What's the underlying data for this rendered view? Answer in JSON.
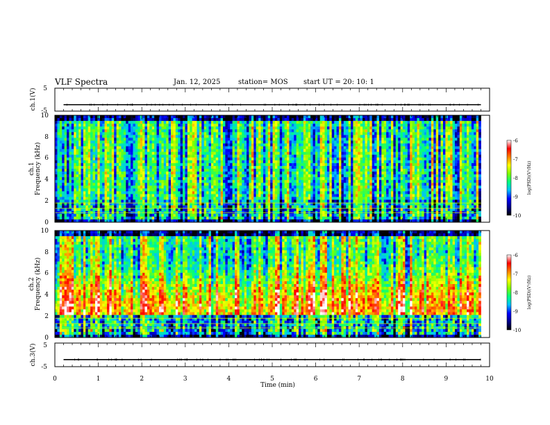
{
  "header": {
    "title": "VLF Spectra",
    "date": "Jan. 12, 2025",
    "station": "station= MOS",
    "start": "start  UT  =   20: 10: 1"
  },
  "chart_data": [
    {
      "type": "line",
      "panel": "ch1-waveform",
      "ylabel": "ch.1(V)",
      "ylim": [
        -5,
        5
      ],
      "yticks": [
        "5",
        "-5"
      ],
      "xlim": [
        0,
        10
      ],
      "series": [
        {
          "x": [
            0.2,
            9.8
          ],
          "values": [
            -2.2,
            -2.2
          ]
        }
      ]
    },
    {
      "type": "heatmap",
      "panel": "ch1-spectrogram",
      "ylabel": "ch.1",
      "ylabel2": "Frequency (kHz)",
      "ylim": [
        0,
        10
      ],
      "yticks": [
        "0",
        "2",
        "4",
        "6",
        "8",
        "10"
      ],
      "xlim": [
        0,
        9.8
      ],
      "colorbar": {
        "label": "log(PSD)(V²/Hz)",
        "range": [
          -10,
          -6
        ],
        "ticks": [
          "-6",
          "-7",
          "-8",
          "-9",
          "-10"
        ]
      }
    },
    {
      "type": "heatmap",
      "panel": "ch2-spectrogram",
      "ylabel": "ch.2",
      "ylabel2": "Frequency (kHz)",
      "ylim": [
        0,
        10
      ],
      "yticks": [
        "0",
        "2",
        "4",
        "6",
        "8",
        "10"
      ],
      "xlim": [
        0,
        9.8
      ],
      "colorbar": {
        "label": "log(PSD)(V²/Hz)",
        "range": [
          -10,
          -6
        ],
        "ticks": [
          "-6",
          "-7",
          "-8",
          "-9",
          "-10"
        ]
      }
    },
    {
      "type": "line",
      "panel": "ch3-waveform",
      "ylabel": "ch.3(V)",
      "ylim": [
        -5,
        5
      ],
      "yticks": [
        "5",
        "-5"
      ],
      "xlim": [
        0,
        10
      ],
      "series": [
        {
          "x": [
            0.2,
            9.8
          ],
          "values": [
            -2.0,
            -2.0
          ]
        }
      ]
    }
  ],
  "x_axis": {
    "label": "Time  (min)",
    "ticks": [
      "0",
      "1",
      "2",
      "3",
      "4",
      "5",
      "6",
      "7",
      "8",
      "9",
      "10"
    ]
  },
  "colors": {
    "scale": [
      "#000000",
      "#00008b",
      "#0000ff",
      "#00bfff",
      "#00ff7f",
      "#7fff00",
      "#ffff00",
      "#ff7f00",
      "#ff0000",
      "#ffffff"
    ]
  }
}
